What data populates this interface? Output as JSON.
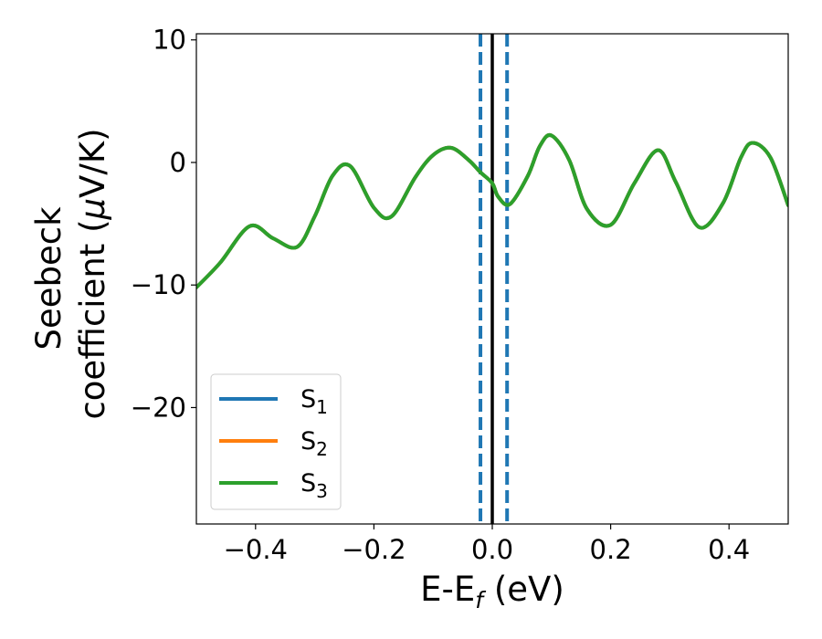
{
  "chart_data": {
    "type": "line",
    "xlabel": {
      "base": "E-E",
      "sub": "f",
      "unit": " (eV)"
    },
    "ylabel": {
      "line1": "Seebeck",
      "line2": "coefficient  (",
      "mu": "μ",
      "unit": "V/K)"
    },
    "xlim": [
      -0.5,
      0.5
    ],
    "ylim": [
      -29.5,
      10.5
    ],
    "xticks": [
      -0.4,
      -0.2,
      0.0,
      0.2,
      0.4
    ],
    "xtick_labels": [
      "−0.4",
      "−0.2",
      "0.0",
      "0.2",
      "0.4"
    ],
    "yticks": [
      -20,
      -10,
      0,
      10
    ],
    "ytick_labels": [
      "−20",
      "−10",
      "0",
      "10"
    ],
    "grid": false,
    "legend_position": "lower-left",
    "x": [
      -0.5,
      -0.46,
      -0.41,
      -0.37,
      -0.33,
      -0.3,
      -0.27,
      -0.24,
      -0.2,
      -0.17,
      -0.13,
      -0.1,
      -0.07,
      -0.04,
      -0.02,
      0.0,
      0.01,
      0.03,
      0.06,
      0.08,
      0.1,
      0.13,
      0.16,
      0.2,
      0.24,
      0.28,
      0.31,
      0.35,
      0.39,
      0.42,
      0.44,
      0.47,
      0.5
    ],
    "series": [
      {
        "name": "S",
        "sub": "1",
        "color": "#1f77b4",
        "values": [
          -10.2,
          -8.2,
          -5.2,
          -6.2,
          -6.9,
          -4.4,
          -1.1,
          -0.3,
          -3.7,
          -4.4,
          -1.2,
          0.6,
          1.2,
          0.2,
          -0.8,
          -1.7,
          -2.8,
          -3.4,
          -1.1,
          1.3,
          2.2,
          0.2,
          -3.8,
          -5.1,
          -1.7,
          1.0,
          -1.6,
          -5.3,
          -3.3,
          0.4,
          1.6,
          0.4,
          -3.5
        ]
      },
      {
        "name": "S",
        "sub": "2",
        "color": "#ff7f0e",
        "values": [
          -10.2,
          -8.2,
          -5.2,
          -6.2,
          -6.9,
          -4.4,
          -1.1,
          -0.3,
          -3.7,
          -4.4,
          -1.2,
          0.6,
          1.2,
          0.2,
          -0.8,
          -1.7,
          -2.8,
          -3.4,
          -1.1,
          1.3,
          2.2,
          0.2,
          -3.8,
          -5.1,
          -1.7,
          1.0,
          -1.6,
          -5.3,
          -3.3,
          0.4,
          1.6,
          0.4,
          -3.5
        ]
      },
      {
        "name": "S",
        "sub": "3",
        "color": "#2ca02c",
        "values": [
          -10.2,
          -8.2,
          -5.2,
          -6.2,
          -6.9,
          -4.4,
          -1.1,
          -0.3,
          -3.7,
          -4.4,
          -1.2,
          0.6,
          1.2,
          0.2,
          -0.8,
          -1.7,
          -2.8,
          -3.4,
          -1.1,
          1.3,
          2.2,
          0.2,
          -3.8,
          -5.1,
          -1.7,
          1.0,
          -1.6,
          -5.3,
          -3.3,
          0.4,
          1.6,
          0.4,
          -3.5
        ]
      }
    ],
    "vlines": [
      {
        "x": 0.0,
        "color": "#000000",
        "style": "solid"
      },
      {
        "x": -0.02,
        "color": "#1f77b4",
        "style": "dashed"
      },
      {
        "x": 0.025,
        "color": "#1f77b4",
        "style": "dashed"
      }
    ]
  }
}
